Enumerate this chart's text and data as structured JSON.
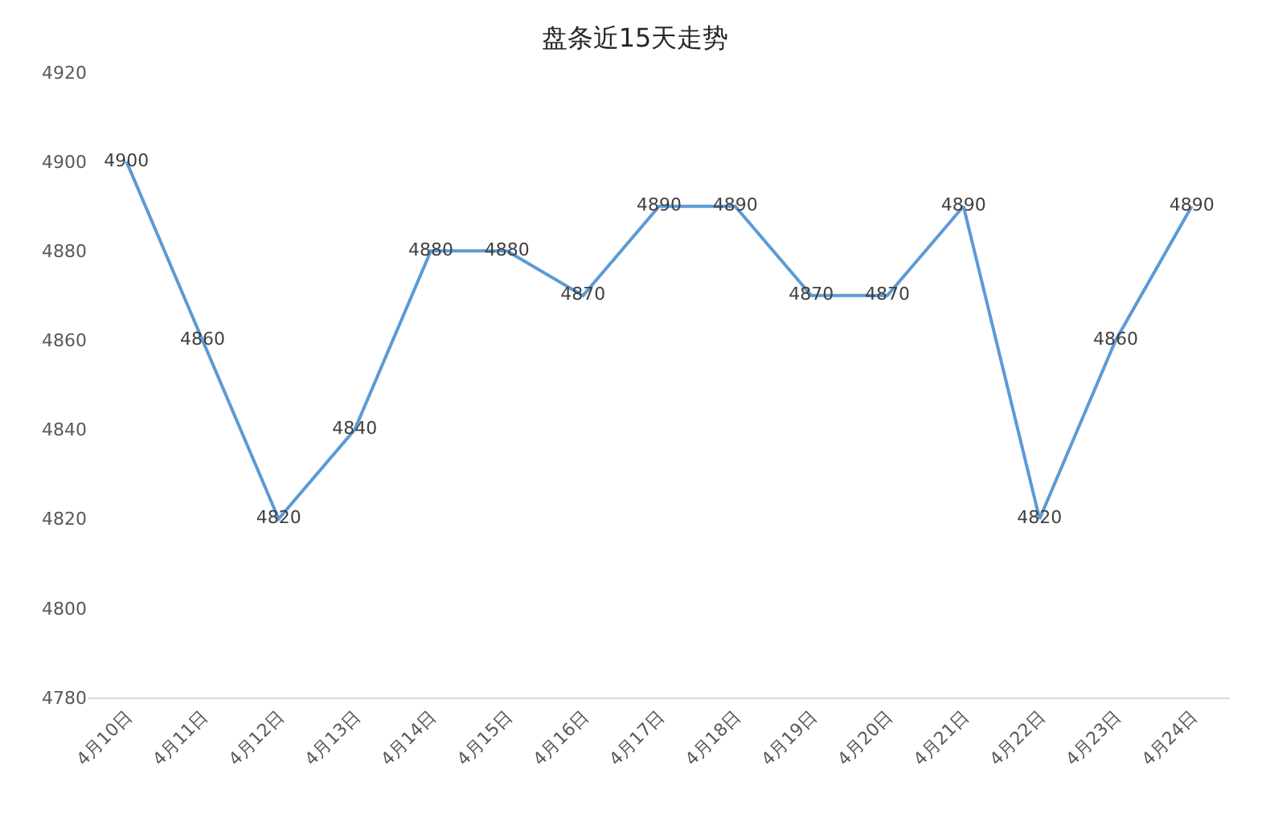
{
  "chart_data": {
    "type": "line",
    "title": "盘条近15天走势",
    "categories": [
      "4月10日",
      "4月11日",
      "4月12日",
      "4月13日",
      "4月14日",
      "4月15日",
      "4月16日",
      "4月17日",
      "4月18日",
      "4月19日",
      "4月20日",
      "4月21日",
      "4月22日",
      "4月23日",
      "4月24日"
    ],
    "series": [
      {
        "color": "#5b9bd5",
        "values": [
          4900,
          4860,
          4820,
          4840,
          4880,
          4880,
          4870,
          4890,
          4890,
          4870,
          4870,
          4890,
          4820,
          4860,
          4890
        ]
      }
    ],
    "ylim": [
      4780,
      4920
    ],
    "yticks": [
      4780,
      4800,
      4820,
      4840,
      4860,
      4880,
      4900,
      4920
    ],
    "data_labels": true,
    "marker": "none",
    "line_style": "solid"
  }
}
